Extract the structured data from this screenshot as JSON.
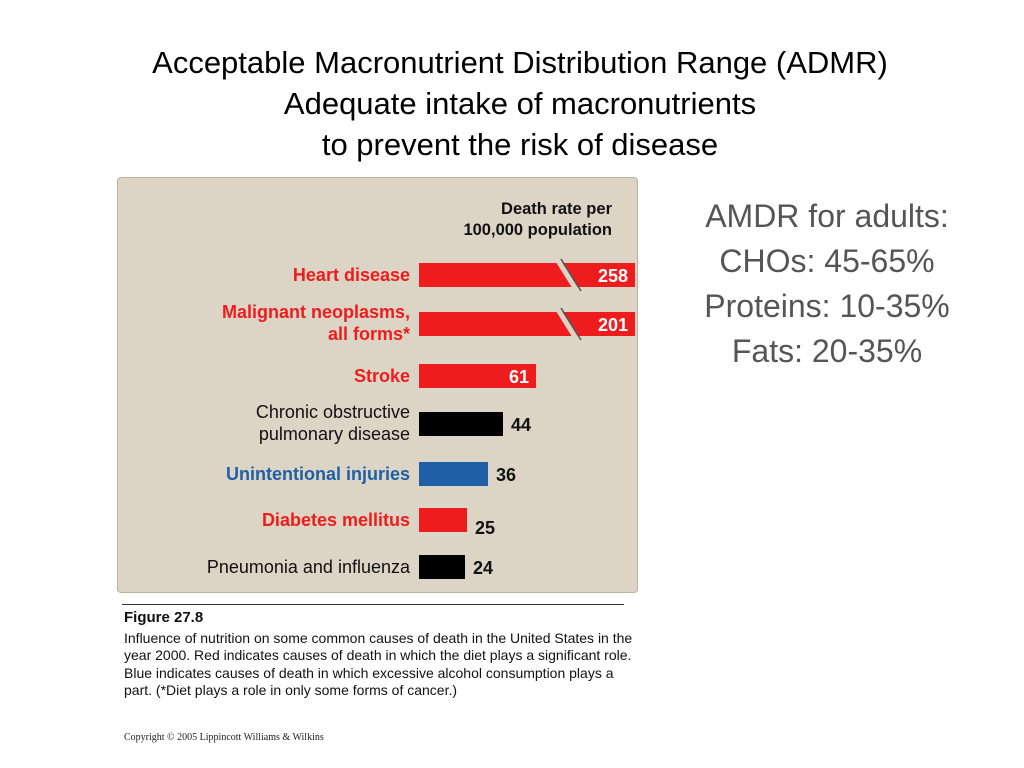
{
  "title": {
    "line1": "Acceptable Macronutrient Distribution Range (ADMR)",
    "line2": "Adequate intake of macronutrients",
    "line3": "to prevent the risk of disease"
  },
  "amdr": {
    "heading": "AMDR for adults:",
    "chos": "CHOs: 45-65%",
    "proteins": "Proteins: 10-35%",
    "fats": "Fats: 20-35%"
  },
  "colors": {
    "diet": "#ee1c1c",
    "alcohol": "#1f5fa6",
    "other": "#000000",
    "panel": "#dcd5c6"
  },
  "chart_data": {
    "type": "bar",
    "orientation": "horizontal",
    "title": "Death rate per 100,000 population",
    "title_lines": [
      "Death rate per",
      "100,000 population"
    ],
    "series": [
      {
        "label_lines": [
          "Heart disease"
        ],
        "value": 258,
        "category": "diet",
        "broken_axis": true
      },
      {
        "label_lines": [
          "Malignant neoplasms,",
          "all forms*"
        ],
        "value": 201,
        "category": "diet",
        "broken_axis": true
      },
      {
        "label_lines": [
          "Stroke"
        ],
        "value": 61,
        "category": "diet",
        "broken_axis": false
      },
      {
        "label_lines": [
          "Chronic obstructive",
          "pulmonary disease"
        ],
        "value": 44,
        "category": "other",
        "broken_axis": false
      },
      {
        "label_lines": [
          "Unintentional injuries"
        ],
        "value": 36,
        "category": "alcohol",
        "broken_axis": false
      },
      {
        "label_lines": [
          "Diabetes mellitus"
        ],
        "value": 25,
        "category": "diet",
        "broken_axis": false
      },
      {
        "label_lines": [
          "Pneumonia and influenza"
        ],
        "value": 24,
        "category": "other",
        "broken_axis": false
      }
    ],
    "scale_max_unbroken": 70
  },
  "caption": {
    "figure_label": "Figure 27.8",
    "text": "Influence of nutrition on some common causes of death in the United States in the year 2000.  Red indicates causes of death in which the diet plays a significant role. Blue indicates causes of death in which excessive alcohol consumption plays a part. (*Diet plays a role in only some forms of cancer.)",
    "copyright": "Copyright © 2005 Lippincott Williams & Wilkins"
  }
}
